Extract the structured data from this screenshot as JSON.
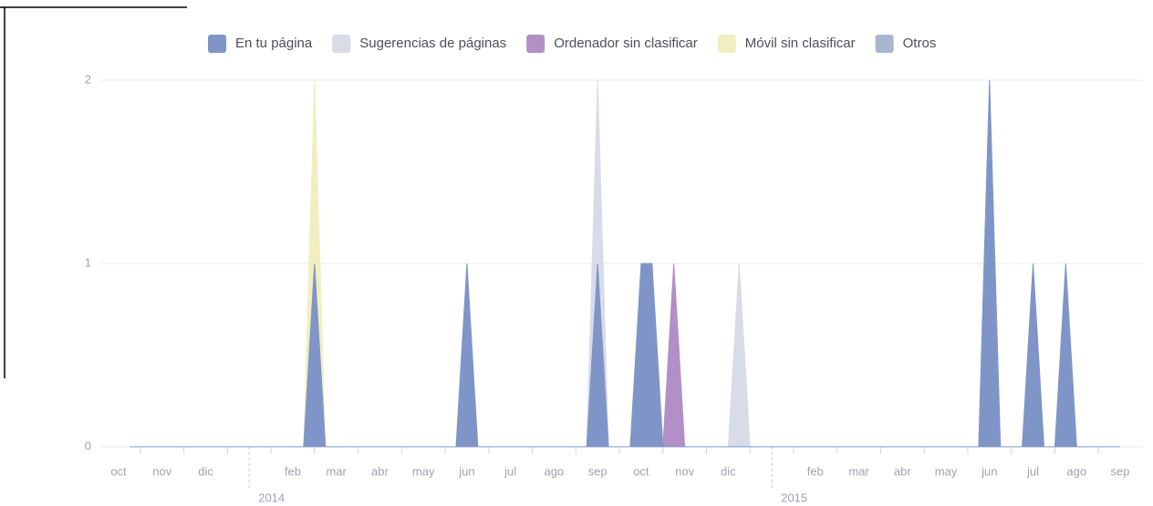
{
  "chart_data": {
    "type": "area",
    "categories": [
      null,
      null,
      "oct",
      null,
      null,
      null,
      "nov",
      null,
      null,
      null,
      "dic",
      null,
      null,
      null,
      null,
      null,
      null,
      null,
      "feb",
      null,
      null,
      null,
      "mar",
      null,
      null,
      null,
      "abr",
      null,
      null,
      null,
      "may",
      null,
      null,
      null,
      "jun",
      null,
      null,
      null,
      "jul",
      null,
      null,
      null,
      "ago",
      null,
      null,
      null,
      "sep",
      null,
      null,
      null,
      "oct",
      null,
      null,
      null,
      "nov",
      null,
      null,
      null,
      "dic",
      null,
      null,
      null,
      null,
      null,
      null,
      null,
      "feb",
      null,
      null,
      null,
      "mar",
      null,
      null,
      null,
      "abr",
      null,
      null,
      null,
      "may",
      null,
      null,
      null,
      "jun",
      null,
      null,
      null,
      "jul",
      null,
      null,
      null,
      "ago",
      null,
      null,
      null,
      "sep"
    ],
    "year_labels": [
      null,
      null,
      null,
      null,
      null,
      null,
      null,
      null,
      null,
      null,
      null,
      null,
      null,
      null,
      "2014",
      null,
      null,
      null,
      null,
      null,
      null,
      null,
      null,
      null,
      null,
      null,
      null,
      null,
      null,
      null,
      null,
      null,
      null,
      null,
      null,
      null,
      null,
      null,
      null,
      null,
      null,
      null,
      null,
      null,
      null,
      null,
      null,
      null,
      null,
      null,
      null,
      null,
      null,
      null,
      null,
      null,
      null,
      null,
      null,
      null,
      null,
      null,
      "2015",
      null,
      null,
      null,
      null,
      null,
      null,
      null,
      null,
      null,
      null,
      null,
      null,
      null,
      null,
      null,
      null,
      null,
      null,
      null,
      null,
      null,
      null,
      null,
      null,
      null,
      null,
      null,
      null,
      null,
      null,
      null,
      null
    ],
    "series": [
      {
        "name": "En tu página",
        "color": "#7f95c7",
        "values": [
          null,
          null,
          null,
          0,
          0,
          0,
          0,
          0,
          0,
          0,
          0,
          0,
          0,
          0,
          0,
          0,
          0,
          0,
          0,
          0,
          1,
          0,
          0,
          0,
          0,
          0,
          0,
          0,
          0,
          0,
          0,
          0,
          0,
          0,
          1,
          0,
          0,
          0,
          0,
          0,
          0,
          0,
          0,
          0,
          0,
          0,
          1,
          0,
          0,
          0,
          1,
          1,
          0,
          0,
          0,
          0,
          0,
          0,
          0,
          0,
          0,
          0,
          0,
          0,
          0,
          0,
          0,
          0,
          0,
          0,
          0,
          0,
          0,
          0,
          0,
          0,
          0,
          0,
          0,
          0,
          0,
          0,
          2,
          0,
          0,
          0,
          1,
          0,
          0,
          1,
          0,
          0,
          0,
          0,
          0
        ]
      },
      {
        "name": "Sugerencias de páginas",
        "color": "#d8dce9",
        "values": [
          null,
          null,
          null,
          0,
          0,
          0,
          0,
          0,
          0,
          0,
          0,
          0,
          0,
          0,
          0,
          0,
          0,
          0,
          0,
          0,
          0,
          0,
          0,
          0,
          0,
          0,
          0,
          0,
          0,
          0,
          0,
          0,
          0,
          0,
          0,
          0,
          0,
          0,
          0,
          0,
          0,
          0,
          0,
          0,
          0,
          0,
          2,
          0,
          0,
          0,
          0,
          0,
          0,
          0,
          0,
          0,
          0,
          0,
          0,
          1,
          0,
          0,
          0,
          0,
          0,
          0,
          0,
          0,
          0,
          0,
          0,
          0,
          0,
          0,
          0,
          0,
          0,
          0,
          0,
          0,
          0,
          0,
          0,
          0,
          0,
          0,
          0,
          0,
          0,
          0,
          0,
          0,
          0,
          0,
          0
        ]
      },
      {
        "name": "Ordenador sin clasificar",
        "color": "#b28fc6",
        "values": [
          null,
          null,
          null,
          0,
          0,
          0,
          0,
          0,
          0,
          0,
          0,
          0,
          0,
          0,
          0,
          0,
          0,
          0,
          0,
          0,
          0,
          0,
          0,
          0,
          0,
          0,
          0,
          0,
          0,
          0,
          0,
          0,
          0,
          0,
          0,
          0,
          0,
          0,
          0,
          0,
          0,
          0,
          0,
          0,
          0,
          0,
          0,
          0,
          0,
          0,
          0,
          0,
          0,
          1,
          0,
          0,
          0,
          0,
          0,
          0,
          0,
          0,
          0,
          0,
          0,
          0,
          0,
          0,
          0,
          0,
          0,
          0,
          0,
          0,
          0,
          0,
          0,
          0,
          0,
          0,
          0,
          0,
          0,
          0,
          0,
          0,
          0,
          0,
          0,
          0,
          0,
          0,
          0,
          0,
          0
        ]
      },
      {
        "name": "Móvil sin clasificar",
        "color": "#f1efbf",
        "values": [
          null,
          null,
          null,
          0,
          0,
          0,
          0,
          0,
          0,
          0,
          0,
          0,
          0,
          0,
          0,
          0,
          0,
          0,
          0,
          0,
          2,
          0,
          0,
          0,
          0,
          0,
          0,
          0,
          0,
          0,
          0,
          0,
          0,
          0,
          0,
          0,
          0,
          0,
          0,
          0,
          0,
          0,
          0,
          0,
          0,
          0,
          0,
          0,
          0,
          0,
          0,
          0,
          0,
          0,
          0,
          0,
          0,
          0,
          0,
          0,
          0,
          0,
          0,
          0,
          0,
          0,
          0,
          0,
          0,
          0,
          0,
          0,
          0,
          0,
          0,
          0,
          0,
          0,
          0,
          0,
          0,
          0,
          0,
          0,
          0,
          0,
          0,
          0,
          0,
          0,
          0,
          0,
          0,
          0,
          0
        ]
      },
      {
        "name": "Otros",
        "color": "#a9b6d0",
        "values": [
          null,
          null,
          null,
          0,
          0,
          0,
          0,
          0,
          0,
          0,
          0,
          0,
          0,
          0,
          0,
          0,
          0,
          0,
          0,
          0,
          0,
          0,
          0,
          0,
          0,
          0,
          0,
          0,
          0,
          0,
          0,
          0,
          0,
          0,
          0,
          0,
          0,
          0,
          0,
          0,
          0,
          0,
          0,
          0,
          0,
          0,
          0,
          0,
          0,
          0,
          0,
          0,
          0,
          0,
          0,
          0,
          0,
          0,
          0,
          0,
          0,
          0,
          0,
          0,
          0,
          0,
          0,
          0,
          0,
          0,
          0,
          0,
          0,
          0,
          0,
          0,
          0,
          0,
          0,
          0,
          0,
          0,
          0,
          0,
          0,
          0,
          0,
          0,
          0,
          0,
          0,
          0,
          0,
          0,
          0
        ]
      }
    ],
    "ylim": [
      0,
      2
    ],
    "yticks": [
      0,
      1,
      2
    ],
    "grid": true,
    "legend": "top"
  }
}
